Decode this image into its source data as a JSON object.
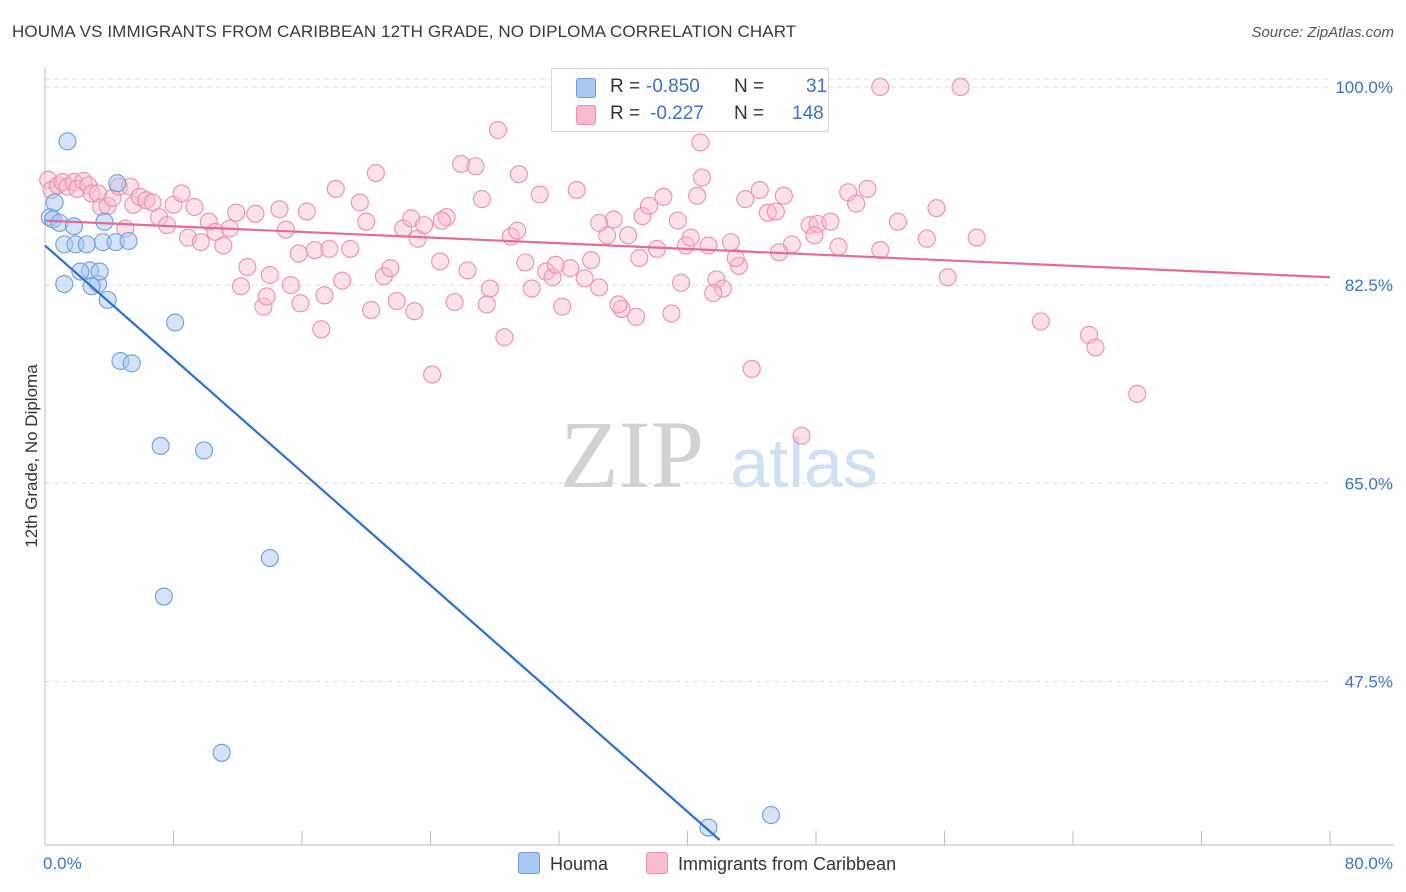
{
  "title": "HOUMA VS IMMIGRANTS FROM CARIBBEAN 12TH GRADE, NO DIPLOMA CORRELATION CHART",
  "source": "Source: ZipAtlas.com",
  "watermark": {
    "zip": "ZIP",
    "atlas": "atlas"
  },
  "legend": {
    "rows": [
      {
        "r_label": "R =",
        "r_value": "-0.850",
        "n_label": "N =",
        "n_value": "31",
        "color": "#aac8f2"
      },
      {
        "r_label": "R =",
        "r_value": "-0.227",
        "n_label": "N =",
        "n_value": "148",
        "color": "#f8bcd0"
      }
    ]
  },
  "bottom_legend": {
    "houma": "Houma",
    "caribbean": "Immigrants from Caribbean"
  },
  "colors": {
    "houma_fill": "#aac8f2",
    "houma_stroke": "#6d9ee0",
    "houma_line": "#2b6fd6",
    "carib_fill": "#f8bcd0",
    "carib_stroke": "#ee8fb0",
    "carib_line": "#e56b97",
    "tick_label": "#3b73c9",
    "grid": "#dddddd"
  },
  "chart_data": {
    "type": "scatter",
    "title": "HOUMA VS IMMIGRANTS FROM CARIBBEAN 12TH GRADE, NO DIPLOMA CORRELATION CHART",
    "xlabel": "",
    "ylabel": "12th Grade, No Diploma",
    "xlim": [
      0,
      80
    ],
    "ylim": [
      33.5,
      101.5
    ],
    "x_tick_labels": [
      "0.0%",
      "80.0%"
    ],
    "y_ticks": [
      47.5,
      65.0,
      82.5,
      100.0
    ],
    "y_tick_labels": [
      "47.5%",
      "65.0%",
      "82.5%",
      "100.0%"
    ],
    "grid": true,
    "legend_position": "top-center",
    "series": [
      {
        "name": "Houma",
        "r": -0.85,
        "n": 31,
        "trend": [
          [
            0.0,
            86.0
          ],
          [
            42.0,
            33.5
          ]
        ],
        "points": [
          [
            0.3,
            88.5
          ],
          [
            0.5,
            88.3
          ],
          [
            0.6,
            89.8
          ],
          [
            0.9,
            88.0
          ],
          [
            1.4,
            95.2
          ],
          [
            1.2,
            86.1
          ],
          [
            1.8,
            87.7
          ],
          [
            1.9,
            86.1
          ],
          [
            2.8,
            83.8
          ],
          [
            3.3,
            82.6
          ],
          [
            3.4,
            83.7
          ],
          [
            3.6,
            86.3
          ],
          [
            2.9,
            82.4
          ],
          [
            1.2,
            82.6
          ],
          [
            4.5,
            91.5
          ],
          [
            3.7,
            88.1
          ],
          [
            4.4,
            86.3
          ],
          [
            5.2,
            86.4
          ],
          [
            3.9,
            81.2
          ],
          [
            4.7,
            75.8
          ],
          [
            5.4,
            75.6
          ],
          [
            8.1,
            79.2
          ],
          [
            7.2,
            68.3
          ],
          [
            9.9,
            67.9
          ],
          [
            14.0,
            58.4
          ],
          [
            7.4,
            55.0
          ],
          [
            11.0,
            41.2
          ],
          [
            41.3,
            34.6
          ],
          [
            45.2,
            35.7
          ],
          [
            2.6,
            86.1
          ],
          [
            2.2,
            83.7
          ]
        ]
      },
      {
        "name": "Immigrants from Caribbean",
        "r": -0.227,
        "n": 148,
        "trend": [
          [
            0.0,
            88.2
          ],
          [
            80.0,
            83.2
          ]
        ],
        "points": [
          [
            0.2,
            91.8
          ],
          [
            0.4,
            90.9
          ],
          [
            0.8,
            91.3
          ],
          [
            1.1,
            91.6
          ],
          [
            1.4,
            91.2
          ],
          [
            1.8,
            91.6
          ],
          [
            2.0,
            91.0
          ],
          [
            2.4,
            91.7
          ],
          [
            2.7,
            91.3
          ],
          [
            2.9,
            90.6
          ],
          [
            3.3,
            90.6
          ],
          [
            3.5,
            89.4
          ],
          [
            3.9,
            89.5
          ],
          [
            4.2,
            90.2
          ],
          [
            4.6,
            91.2
          ],
          [
            5.0,
            87.5
          ],
          [
            5.3,
            91.2
          ],
          [
            5.5,
            89.6
          ],
          [
            5.9,
            90.3
          ],
          [
            6.3,
            90.0
          ],
          [
            6.7,
            89.8
          ],
          [
            7.1,
            88.5
          ],
          [
            7.6,
            87.8
          ],
          [
            8.0,
            89.6
          ],
          [
            8.5,
            90.6
          ],
          [
            8.9,
            86.7
          ],
          [
            9.3,
            89.4
          ],
          [
            9.7,
            86.3
          ],
          [
            10.2,
            88.1
          ],
          [
            10.6,
            87.2
          ],
          [
            11.1,
            86.0
          ],
          [
            11.5,
            87.5
          ],
          [
            11.9,
            88.9
          ],
          [
            12.2,
            82.4
          ],
          [
            12.6,
            84.1
          ],
          [
            13.1,
            88.8
          ],
          [
            13.6,
            80.6
          ],
          [
            14.0,
            83.4
          ],
          [
            14.6,
            89.2
          ],
          [
            15.0,
            87.4
          ],
          [
            15.3,
            82.5
          ],
          [
            15.8,
            85.3
          ],
          [
            16.3,
            89.0
          ],
          [
            16.8,
            85.6
          ],
          [
            17.2,
            78.6
          ],
          [
            17.7,
            85.7
          ],
          [
            18.1,
            91.0
          ],
          [
            18.5,
            82.9
          ],
          [
            19.0,
            85.7
          ],
          [
            19.6,
            89.8
          ],
          [
            20.0,
            88.1
          ],
          [
            20.6,
            92.4
          ],
          [
            21.1,
            83.3
          ],
          [
            21.5,
            84.0
          ],
          [
            21.9,
            81.1
          ],
          [
            22.3,
            87.5
          ],
          [
            22.8,
            88.4
          ],
          [
            23.2,
            86.6
          ],
          [
            23.6,
            87.8
          ],
          [
            24.1,
            74.6
          ],
          [
            24.6,
            84.6
          ],
          [
            25.0,
            88.5
          ],
          [
            25.5,
            81.0
          ],
          [
            25.9,
            93.2
          ],
          [
            26.3,
            83.8
          ],
          [
            26.8,
            93.0
          ],
          [
            27.2,
            90.1
          ],
          [
            27.7,
            82.2
          ],
          [
            28.2,
            96.2
          ],
          [
            28.6,
            77.9
          ],
          [
            29.0,
            86.8
          ],
          [
            29.5,
            92.3
          ],
          [
            29.9,
            84.5
          ],
          [
            30.3,
            82.2
          ],
          [
            30.8,
            90.5
          ],
          [
            31.2,
            83.7
          ],
          [
            31.6,
            83.2
          ],
          [
            32.2,
            80.6
          ],
          [
            32.7,
            84.0
          ],
          [
            33.1,
            90.9
          ],
          [
            33.6,
            83.1
          ],
          [
            34.0,
            84.7
          ],
          [
            34.5,
            82.3
          ],
          [
            35.0,
            86.9
          ],
          [
            35.4,
            88.3
          ],
          [
            35.9,
            80.4
          ],
          [
            36.3,
            86.9
          ],
          [
            36.8,
            79.7
          ],
          [
            37.2,
            88.6
          ],
          [
            37.6,
            89.5
          ],
          [
            38.1,
            85.7
          ],
          [
            38.5,
            90.3
          ],
          [
            39.0,
            80.0
          ],
          [
            39.4,
            88.2
          ],
          [
            39.9,
            86.0
          ],
          [
            40.2,
            86.7
          ],
          [
            40.6,
            90.4
          ],
          [
            40.9,
            92.0
          ],
          [
            41.3,
            86.0
          ],
          [
            41.8,
            83.0
          ],
          [
            42.2,
            82.2
          ],
          [
            42.7,
            86.3
          ],
          [
            43.2,
            84.2
          ],
          [
            43.6,
            90.1
          ],
          [
            44.0,
            75.1
          ],
          [
            44.5,
            90.9
          ],
          [
            45.0,
            88.9
          ],
          [
            45.5,
            89.0
          ],
          [
            46.0,
            90.4
          ],
          [
            46.5,
            86.1
          ],
          [
            47.1,
            69.2
          ],
          [
            47.6,
            87.8
          ],
          [
            48.1,
            87.9
          ],
          [
            48.9,
            88.1
          ],
          [
            49.4,
            85.9
          ],
          [
            50.0,
            90.7
          ],
          [
            50.5,
            89.7
          ],
          [
            51.2,
            91.0
          ],
          [
            52.0,
            85.6
          ],
          [
            53.1,
            88.1
          ],
          [
            54.9,
            86.6
          ],
          [
            55.5,
            89.3
          ],
          [
            56.2,
            83.2
          ],
          [
            58.0,
            86.7
          ],
          [
            62.0,
            79.3
          ],
          [
            65.0,
            78.1
          ],
          [
            65.4,
            77.0
          ],
          [
            68.0,
            72.9
          ],
          [
            52.0,
            100.0
          ],
          [
            57.0,
            100.0
          ],
          [
            24.7,
            88.2
          ],
          [
            27.5,
            80.8
          ],
          [
            31.8,
            84.3
          ],
          [
            34.5,
            88.0
          ],
          [
            37.0,
            84.9
          ],
          [
            39.6,
            82.7
          ],
          [
            43.0,
            84.9
          ],
          [
            45.7,
            85.4
          ],
          [
            29.4,
            87.3
          ],
          [
            35.7,
            80.8
          ],
          [
            40.8,
            95.1
          ],
          [
            41.6,
            81.8
          ],
          [
            47.9,
            86.9
          ],
          [
            13.8,
            81.5
          ],
          [
            15.9,
            80.9
          ],
          [
            17.4,
            81.6
          ],
          [
            20.3,
            80.3
          ],
          [
            23.0,
            80.2
          ]
        ]
      }
    ]
  }
}
